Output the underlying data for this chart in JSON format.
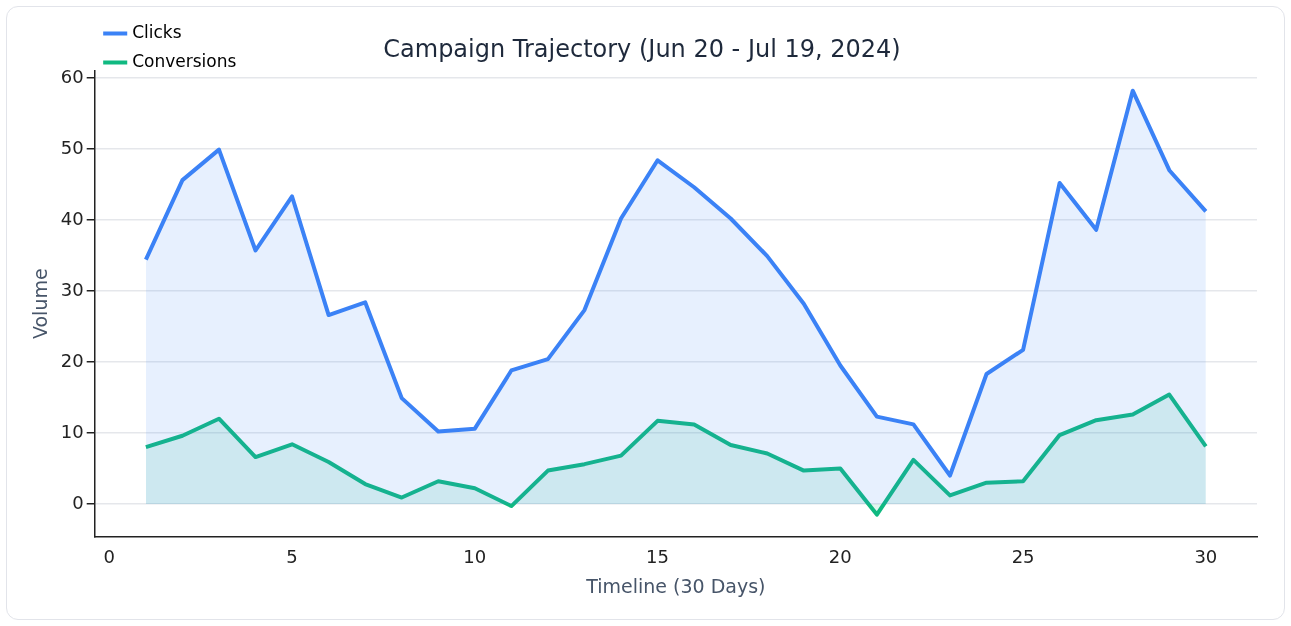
{
  "chart_data": {
    "type": "area",
    "title": "Campaign Trajectory (Jun 20 - Jul 19, 2024)",
    "xlabel": "Timeline (30 Days)",
    "ylabel": "Volume",
    "x": [
      1,
      2,
      3,
      4,
      5,
      6,
      7,
      8,
      9,
      10,
      11,
      12,
      13,
      14,
      15,
      16,
      17,
      18,
      19,
      20,
      21,
      22,
      23,
      24,
      25,
      26,
      27,
      28,
      29,
      30
    ],
    "series": [
      {
        "name": "Clicks",
        "color": "#3b82f6",
        "values": [
          34.4,
          45.6,
          49.9,
          35.7,
          43.3,
          26.6,
          28.4,
          14.9,
          10.2,
          10.6,
          18.8,
          20.4,
          27.3,
          40.2,
          48.4,
          44.6,
          40.2,
          34.9,
          28.2,
          19.5,
          12.3,
          11.2,
          4.0,
          18.3,
          21.7,
          45.2,
          38.6,
          58.2,
          47.0,
          41.2
        ]
      },
      {
        "name": "Conversions",
        "color": "#10b981",
        "values": [
          8.0,
          9.6,
          12.0,
          6.6,
          8.4,
          5.9,
          2.8,
          0.9,
          3.2,
          2.2,
          -0.3,
          4.7,
          5.6,
          6.8,
          11.7,
          11.2,
          8.3,
          7.1,
          4.7,
          5.0,
          -1.5,
          6.2,
          1.2,
          3.0,
          3.2,
          9.7,
          11.8,
          12.6,
          15.4,
          8.1
        ]
      }
    ],
    "xlim": [
      -0.4,
      31.4
    ],
    "ylim": [
      -4.6,
      61
    ],
    "xticks": [
      0,
      5,
      10,
      15,
      20,
      25,
      30
    ],
    "yticks": [
      0,
      10,
      20,
      30,
      40,
      50,
      60
    ],
    "grid": "y",
    "legend": "top left",
    "marker": "none",
    "line_style": "solid"
  }
}
